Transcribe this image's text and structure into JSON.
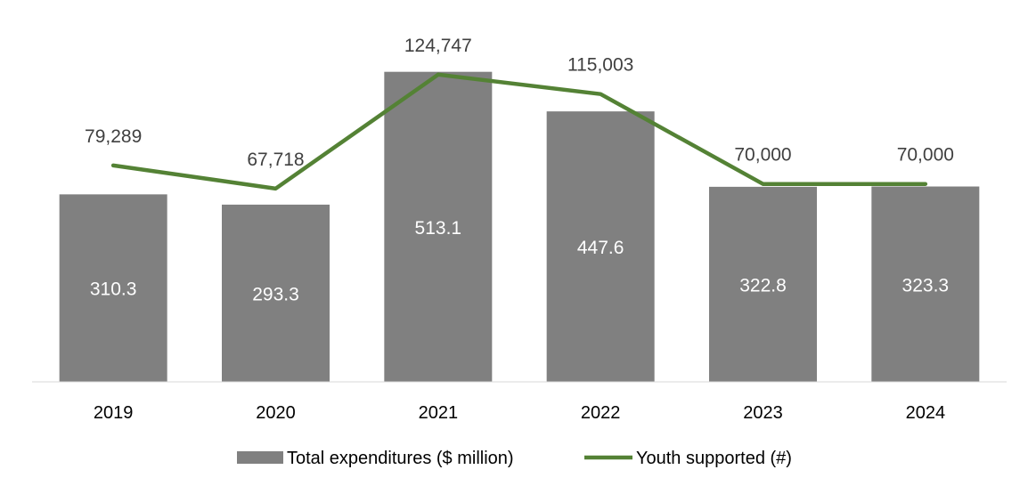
{
  "chart_data": {
    "type": "bar",
    "categories": [
      "2019",
      "2020",
      "2021",
      "2022",
      "2023",
      "2024"
    ],
    "series": [
      {
        "name": "Total expenditures ($ million)",
        "kind": "bar",
        "values": [
          310.3,
          293.3,
          513.1,
          447.6,
          322.8,
          323.3
        ],
        "labels": [
          "310.3",
          "293.3",
          "513.1",
          "447.6",
          "322.8",
          "323.3"
        ],
        "color": "#808080"
      },
      {
        "name": "Youth supported (#)",
        "kind": "line",
        "values": [
          79289,
          67718,
          124747,
          115003,
          70000,
          70000
        ],
        "labels": [
          "79,289",
          "67,718",
          "124,747",
          "115,003",
          "70,000",
          "70,000"
        ],
        "color": "#548235"
      }
    ],
    "bar_ylim": [
      0,
      520
    ],
    "line_ylim": [
      -29000,
      130000
    ],
    "legend_position": "bottom",
    "grid": false
  },
  "colors": {
    "bar_label": "#ffffff",
    "text": "#000000",
    "line_label": "#404040",
    "frame": "#d9d9d9",
    "axis": "#d9d9d9"
  }
}
